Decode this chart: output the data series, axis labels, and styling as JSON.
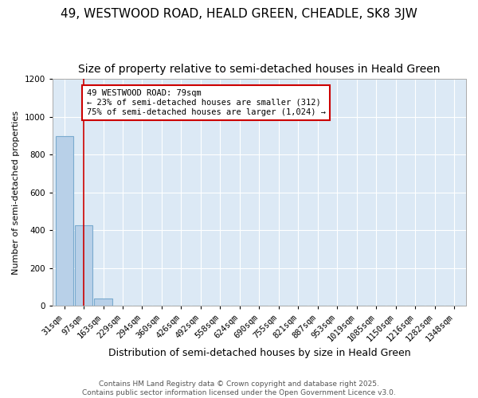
{
  "title": "49, WESTWOOD ROAD, HEALD GREEN, CHEADLE, SK8 3JW",
  "subtitle": "Size of property relative to semi-detached houses in Heald Green",
  "xlabel": "Distribution of semi-detached houses by size in Heald Green",
  "ylabel": "Number of semi-detached properties",
  "categories": [
    "31sqm",
    "97sqm",
    "163sqm",
    "229sqm",
    "294sqm",
    "360sqm",
    "426sqm",
    "492sqm",
    "558sqm",
    "624sqm",
    "690sqm",
    "755sqm",
    "821sqm",
    "887sqm",
    "953sqm",
    "1019sqm",
    "1085sqm",
    "1150sqm",
    "1216sqm",
    "1282sqm",
    "1348sqm"
  ],
  "values": [
    900,
    425,
    40,
    0,
    0,
    0,
    0,
    0,
    0,
    0,
    0,
    0,
    0,
    0,
    0,
    0,
    0,
    0,
    0,
    0,
    0
  ],
  "bar_color": "#b8d0e8",
  "bar_edge_color": "#7aabcf",
  "fig_bg_color": "#ffffff",
  "plot_bg_color": "#dce9f5",
  "vline_x": 1.0,
  "vline_color": "#cc0000",
  "annotation_text": "49 WESTWOOD ROAD: 79sqm\n← 23% of semi-detached houses are smaller (312)\n75% of semi-detached houses are larger (1,024) →",
  "annotation_box_edge_color": "#cc0000",
  "ylim": [
    0,
    1200
  ],
  "yticks": [
    0,
    200,
    400,
    600,
    800,
    1000,
    1200
  ],
  "footer": "Contains HM Land Registry data © Crown copyright and database right 2025.\nContains public sector information licensed under the Open Government Licence v3.0.",
  "title_fontsize": 11,
  "subtitle_fontsize": 10,
  "xlabel_fontsize": 9,
  "ylabel_fontsize": 8,
  "tick_fontsize": 7.5,
  "footer_fontsize": 6.5,
  "annotation_fontsize": 7.5
}
